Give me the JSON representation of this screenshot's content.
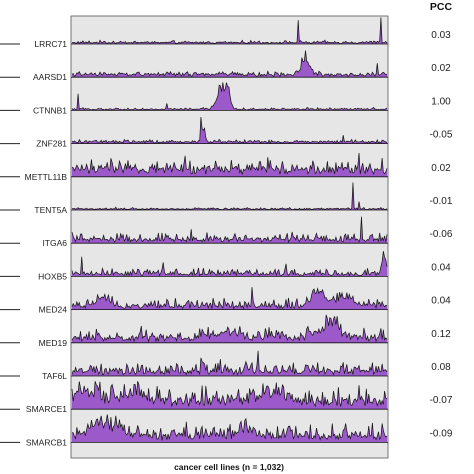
{
  "chart_data": {
    "type": "area",
    "header": "PCC",
    "xlabel": "cancer cell lines (n = 1,032)",
    "n_points": 1032,
    "colors": {
      "fill": "#9b59c9",
      "line": "#111111",
      "panel": "#e6e6e6"
    },
    "series": [
      {
        "name": "LRRC71",
        "pcc": "0.03",
        "baseline": 0.05,
        "noise": 0.07,
        "spikes": [
          [
            0.72,
            0.85
          ],
          [
            0.98,
            0.95
          ]
        ],
        "humps": []
      },
      {
        "name": "AARSD1",
        "pcc": "0.02",
        "baseline": 0.1,
        "noise": 0.1,
        "spikes": [
          [
            0.74,
            0.95
          ],
          [
            0.73,
            0.7
          ],
          [
            0.97,
            0.5
          ]
        ],
        "humps": [
          [
            0.74,
            0.02,
            0.45
          ]
        ]
      },
      {
        "name": "CTNNB1",
        "pcc": "1.00",
        "baseline": 0.04,
        "noise": 0.06,
        "spikes": [
          [
            0.02,
            0.6
          ],
          [
            0.48,
            0.95
          ],
          [
            0.49,
            0.8
          ],
          [
            0.3,
            0.25
          ]
        ],
        "humps": [
          [
            0.475,
            0.02,
            0.8
          ],
          [
            0.495,
            0.01,
            0.55
          ]
        ]
      },
      {
        "name": "ZNF281",
        "pcc": "-0.05",
        "baseline": 0.06,
        "noise": 0.08,
        "spikes": [
          [
            0.41,
            0.95
          ],
          [
            0.42,
            0.55
          ],
          [
            0.86,
            0.3
          ]
        ],
        "humps": [
          [
            0.415,
            0.008,
            0.4
          ]
        ]
      },
      {
        "name": "METTL11B",
        "pcc": "0.02",
        "baseline": 0.28,
        "noise": 0.35,
        "spikes": [
          [
            0.36,
            0.75
          ],
          [
            0.91,
            0.85
          ],
          [
            0.62,
            0.7
          ]
        ],
        "humps": []
      },
      {
        "name": "TENT5A",
        "pcc": "-0.01",
        "baseline": 0.04,
        "noise": 0.05,
        "spikes": [
          [
            0.89,
            0.98
          ],
          [
            0.91,
            0.3
          ]
        ],
        "humps": []
      },
      {
        "name": "ITGA6",
        "pcc": "-0.06",
        "baseline": 0.12,
        "noise": 0.25,
        "spikes": [
          [
            0.92,
            0.95
          ],
          [
            0.38,
            0.5
          ],
          [
            0.7,
            0.4
          ]
        ],
        "humps": []
      },
      {
        "name": "HOXB5",
        "pcc": "0.04",
        "baseline": 0.08,
        "noise": 0.22,
        "spikes": [
          [
            0.03,
            0.7
          ],
          [
            0.99,
            0.9
          ],
          [
            0.29,
            0.5
          ],
          [
            0.68,
            0.45
          ]
        ],
        "humps": [
          [
            0.99,
            0.008,
            0.7
          ]
        ]
      },
      {
        "name": "MED24",
        "pcc": "0.04",
        "baseline": 0.12,
        "noise": 0.3,
        "spikes": [
          [
            0.57,
            0.8
          ],
          [
            0.78,
            0.75
          ]
        ],
        "humps": [
          [
            0.1,
            0.03,
            0.35
          ],
          [
            0.78,
            0.03,
            0.5
          ],
          [
            0.86,
            0.04,
            0.3
          ]
        ]
      },
      {
        "name": "MED19",
        "pcc": "0.12",
        "baseline": 0.18,
        "noise": 0.4,
        "spikes": [
          [
            0.81,
            0.85
          ],
          [
            0.84,
            0.95
          ],
          [
            0.22,
            0.6
          ]
        ],
        "humps": [
          [
            0.82,
            0.035,
            0.55
          ],
          [
            0.5,
            0.05,
            0.2
          ]
        ]
      },
      {
        "name": "TAF6L",
        "pcc": "0.08",
        "baseline": 0.15,
        "noise": 0.35,
        "spikes": [
          [
            0.41,
            0.65
          ],
          [
            0.59,
            0.9
          ],
          [
            0.47,
            0.6
          ]
        ],
        "humps": []
      },
      {
        "name": "SMARCE1",
        "pcc": "-0.07",
        "baseline": 0.3,
        "noise": 0.5,
        "spikes": [
          [
            0.2,
            0.85
          ],
          [
            0.67,
            0.8
          ]
        ],
        "humps": [
          [
            0.05,
            0.05,
            0.35
          ],
          [
            0.2,
            0.05,
            0.3
          ],
          [
            0.64,
            0.05,
            0.35
          ]
        ]
      },
      {
        "name": "SMARCB1",
        "pcc": "-0.09",
        "baseline": 0.25,
        "noise": 0.45,
        "spikes": [
          [
            0.14,
            0.95
          ],
          [
            0.08,
            0.7
          ]
        ],
        "humps": [
          [
            0.1,
            0.05,
            0.45
          ],
          [
            0.55,
            0.03,
            0.2
          ]
        ]
      }
    ]
  }
}
